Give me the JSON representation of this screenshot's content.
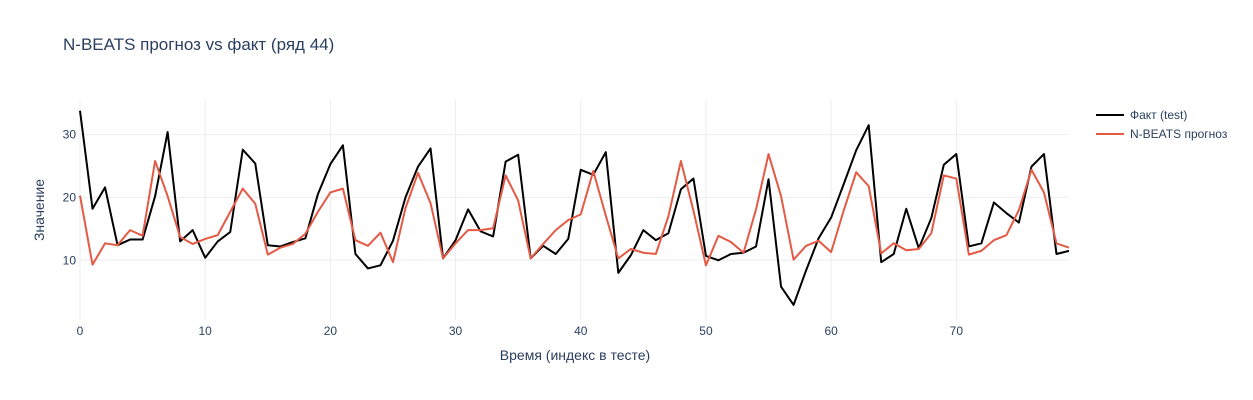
{
  "chart_data": {
    "type": "line",
    "title": "N-BEATS прогноз vs факт (ряд 44)",
    "xlabel": "Время (индекс в тесте)",
    "ylabel": "Значение",
    "xlim": [
      0,
      79
    ],
    "ylim": [
      0.5,
      35.5
    ],
    "xticks": [
      0,
      10,
      20,
      30,
      40,
      50,
      60,
      70
    ],
    "yticks": [
      10,
      20,
      30
    ],
    "grid": true,
    "legend_position": "right",
    "x": [
      0,
      1,
      2,
      3,
      4,
      5,
      6,
      7,
      8,
      9,
      10,
      11,
      12,
      13,
      14,
      15,
      16,
      17,
      18,
      19,
      20,
      21,
      22,
      23,
      24,
      25,
      26,
      27,
      28,
      29,
      30,
      31,
      32,
      33,
      34,
      35,
      36,
      37,
      38,
      39,
      40,
      41,
      42,
      43,
      44,
      45,
      46,
      47,
      48,
      49,
      50,
      51,
      52,
      53,
      54,
      55,
      56,
      57,
      58,
      59,
      60,
      61,
      62,
      63,
      64,
      65,
      66,
      67,
      68,
      69,
      70,
      71,
      72,
      73,
      74,
      75,
      76,
      77,
      78,
      79
    ],
    "series": [
      {
        "name": "Факт (test)",
        "color": "#000000",
        "values": [
          33.8,
          18.2,
          21.6,
          12.4,
          13.3,
          13.3,
          20.2,
          30.4,
          13.0,
          14.8,
          10.4,
          13.0,
          14.5,
          27.6,
          25.4,
          12.4,
          12.2,
          12.9,
          13.5,
          20.5,
          25.3,
          28.3,
          11.0,
          8.7,
          9.2,
          13.1,
          20.0,
          24.9,
          27.8,
          10.3,
          13.2,
          18.1,
          14.6,
          13.8,
          25.7,
          26.8,
          10.3,
          12.3,
          11.0,
          13.4,
          24.4,
          23.6,
          27.2,
          8.0,
          10.8,
          14.8,
          13.2,
          14.3,
          21.3,
          23.0,
          10.7,
          10.0,
          11.0,
          11.2,
          12.2,
          22.9,
          5.8,
          2.9,
          8.4,
          13.5,
          16.8,
          22.1,
          27.5,
          31.5,
          9.7,
          11.0,
          18.2,
          11.9,
          16.7,
          25.2,
          26.9,
          12.2,
          12.7,
          19.2,
          17.5,
          16.0,
          24.9,
          26.9,
          11.0,
          11.5
        ]
      },
      {
        "name": "N-BEATS прогноз",
        "color": "#e45a45",
        "values": [
          20.3,
          9.3,
          12.7,
          12.4,
          14.8,
          13.9,
          25.8,
          20.2,
          13.7,
          12.6,
          13.4,
          14.0,
          17.7,
          21.4,
          19.0,
          10.9,
          12.0,
          12.6,
          14.2,
          17.7,
          20.8,
          21.4,
          13.2,
          12.3,
          14.4,
          9.7,
          18.3,
          23.9,
          19.1,
          10.3,
          12.7,
          14.8,
          14.8,
          15.1,
          23.5,
          19.5,
          10.3,
          12.6,
          14.8,
          16.4,
          17.3,
          24.2,
          17.1,
          10.3,
          11.8,
          11.2,
          11.0,
          17.0,
          25.8,
          17.9,
          9.2,
          13.9,
          12.9,
          11.2,
          18.1,
          26.9,
          20.2,
          10.1,
          12.3,
          13.1,
          11.3,
          17.9,
          24.0,
          21.8,
          11.1,
          12.7,
          11.6,
          11.8,
          14.3,
          23.5,
          23.0,
          10.9,
          11.5,
          13.2,
          14.0,
          18.0,
          24.4,
          20.8,
          12.7,
          12.0
        ]
      }
    ]
  }
}
